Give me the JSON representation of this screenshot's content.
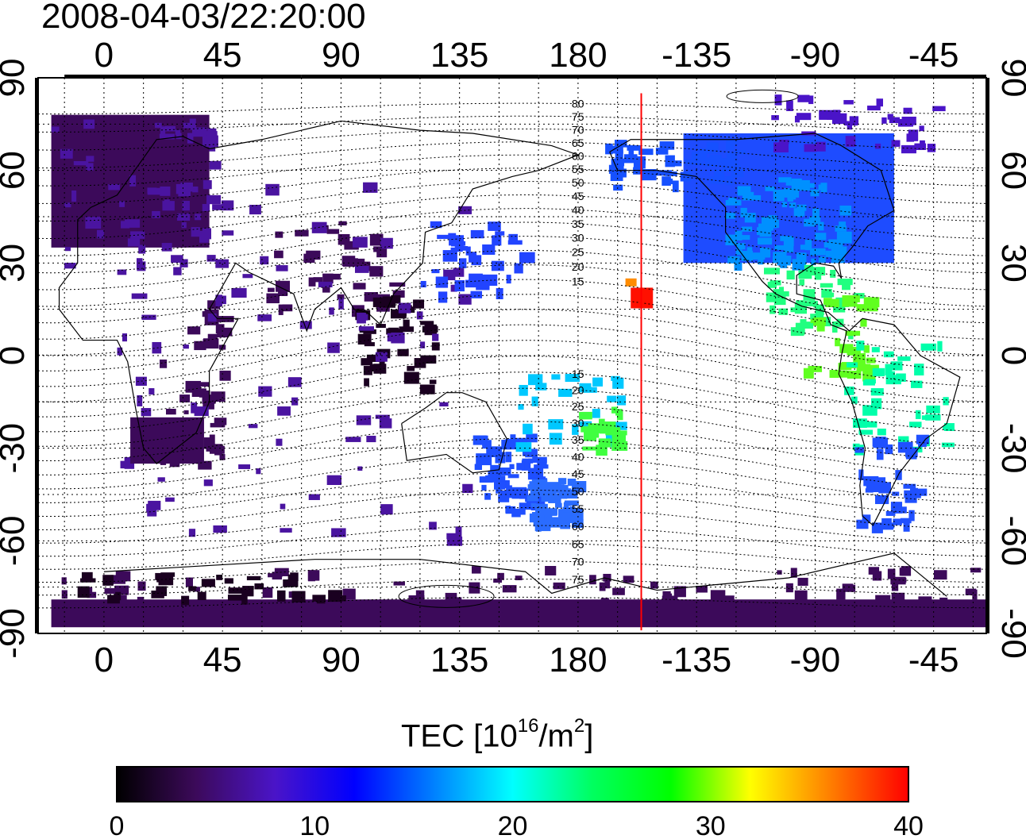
{
  "title": "2008-04-03/22:20:00",
  "map": {
    "lon_ticks": [
      "0",
      "45",
      "90",
      "135",
      "180",
      "-135",
      "-90",
      "-45"
    ],
    "lat_ticks": [
      "90",
      "60",
      "30",
      "0",
      "-30",
      "-60",
      "-90"
    ],
    "lon_range_display": [
      -25,
      335
    ],
    "lat_range": [
      -90,
      90
    ],
    "grid": true,
    "red_line_longitude": -156,
    "contour_labels_north": [
      "80",
      "75",
      "70",
      "65",
      "60",
      "55",
      "50",
      "45",
      "40",
      "35",
      "30",
      "25",
      "20",
      "15"
    ],
    "contour_labels_south": [
      "15",
      "20",
      "25",
      "30",
      "35",
      "40",
      "45",
      "50",
      "55",
      "60",
      "65",
      "70",
      "75"
    ],
    "contour_label_longitude": 180
  },
  "colorbar": {
    "label": "TEC  [10",
    "label_exp": "16",
    "label_unit": "/m",
    "label_unit_exp": "2",
    "label_end": "]",
    "ticks": [
      "0",
      "10",
      "20",
      "30",
      "40"
    ],
    "range": [
      0,
      40
    ],
    "colormap": [
      "#000000",
      "#3c0a5a",
      "#4a14c8",
      "#0000ff",
      "#0080ff",
      "#00ffff",
      "#00ff60",
      "#00ff00",
      "#ffff00",
      "#ff8000",
      "#ff0000"
    ]
  }
}
